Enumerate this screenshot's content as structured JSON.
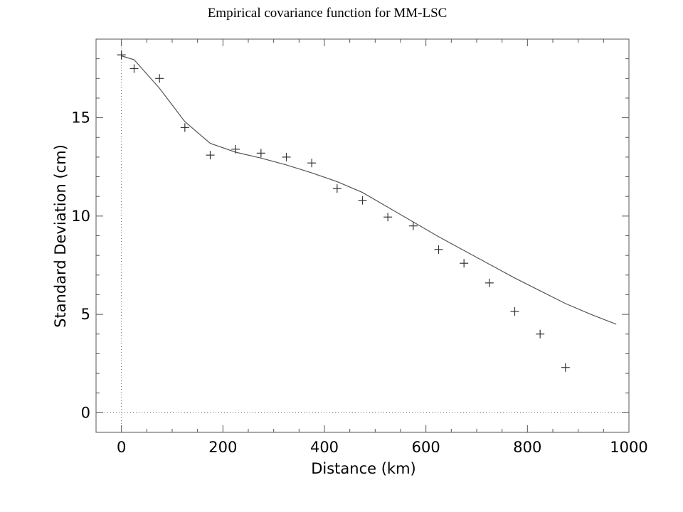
{
  "chart_data": {
    "type": "scatter",
    "title": "Empirical covariance function for MM-LSC",
    "xlabel": "Distance (km)",
    "ylabel": "Standard Deviation (cm)",
    "xlim": [
      -50,
      1000
    ],
    "ylim": [
      -1,
      19
    ],
    "x_ticks": [
      0,
      200,
      400,
      600,
      800,
      1000
    ],
    "y_ticks": [
      0,
      5,
      10,
      15
    ],
    "grid": false,
    "reference_lines": {
      "x": 0,
      "y": 0,
      "style": "dotted"
    },
    "series": [
      {
        "kind": "points",
        "marker": "plus",
        "x": [
          0,
          25,
          75,
          125,
          175,
          225,
          275,
          325,
          375,
          425,
          475,
          525,
          575,
          625,
          675,
          725,
          775,
          825,
          875
        ],
        "y": [
          18.2,
          17.5,
          17.0,
          14.5,
          13.1,
          13.4,
          13.2,
          13.0,
          12.7,
          11.4,
          10.8,
          9.95,
          9.5,
          8.3,
          7.6,
          6.6,
          5.15,
          4.0,
          2.3
        ]
      },
      {
        "kind": "line",
        "x": [
          0,
          25,
          75,
          125,
          175,
          225,
          275,
          325,
          375,
          425,
          475,
          525,
          575,
          625,
          675,
          725,
          775,
          825,
          875,
          925,
          975
        ],
        "y": [
          18.15,
          17.95,
          16.5,
          14.8,
          13.7,
          13.25,
          12.95,
          12.6,
          12.2,
          11.75,
          11.2,
          10.45,
          9.7,
          8.95,
          8.25,
          7.55,
          6.85,
          6.2,
          5.55,
          5.0,
          4.5
        ]
      }
    ]
  }
}
